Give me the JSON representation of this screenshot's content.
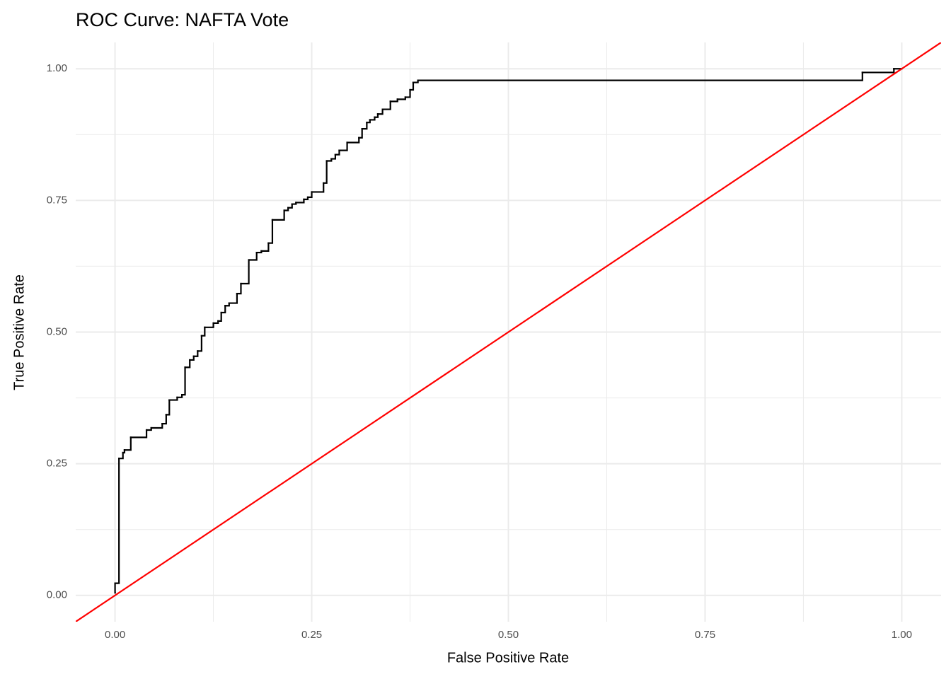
{
  "chart_data": {
    "type": "step",
    "title": "ROC Curve: NAFTA Vote",
    "x_label": "False Positive Rate",
    "y_label": "True Positive Rate",
    "xlim": [
      -0.05,
      1.05
    ],
    "ylim": [
      -0.05,
      1.05
    ],
    "xticks": [
      {
        "value": 0,
        "label": "0.00"
      },
      {
        "value": 0.25,
        "label": "0.25"
      },
      {
        "value": 0.5,
        "label": "0.50"
      },
      {
        "value": 0.75,
        "label": "0.75"
      },
      {
        "value": 1,
        "label": "1.00"
      }
    ],
    "yticks": [
      {
        "value": 0,
        "label": "0.00"
      },
      {
        "value": 0.25,
        "label": "0.25"
      },
      {
        "value": 0.5,
        "label": "0.50"
      },
      {
        "value": 0.75,
        "label": "0.75"
      },
      {
        "value": 1,
        "label": "1.00"
      }
    ],
    "grid": true,
    "minor_grid": true,
    "color": "#000000",
    "x": [
      0,
      0,
      0.005,
      0.01,
      0.012,
      0.02,
      0.04,
      0.046,
      0.06,
      0.065,
      0.069,
      0.079,
      0.085,
      0.089,
      0.095,
      0.1,
      0.105,
      0.11,
      0.114,
      0.125,
      0.131,
      0.135,
      0.14,
      0.145,
      0.155,
      0.16,
      0.17,
      0.18,
      0.186,
      0.195,
      0.2,
      0.215,
      0.22,
      0.225,
      0.23,
      0.24,
      0.245,
      0.25,
      0.265,
      0.269,
      0.275,
      0.28,
      0.285,
      0.295,
      0.31,
      0.314,
      0.32,
      0.324,
      0.33,
      0.334,
      0.34,
      0.35,
      0.359,
      0.369,
      0.375,
      0.379,
      0.385,
      0.95,
      0.99,
      1
    ],
    "values": [
      0.005,
      0.023,
      0.26,
      0.271,
      0.276,
      0.3,
      0.314,
      0.318,
      0.326,
      0.343,
      0.371,
      0.376,
      0.381,
      0.433,
      0.447,
      0.454,
      0.464,
      0.493,
      0.509,
      0.517,
      0.521,
      0.537,
      0.55,
      0.555,
      0.573,
      0.592,
      0.637,
      0.651,
      0.654,
      0.669,
      0.713,
      0.731,
      0.736,
      0.743,
      0.746,
      0.752,
      0.756,
      0.766,
      0.783,
      0.825,
      0.829,
      0.837,
      0.845,
      0.86,
      0.869,
      0.886,
      0.898,
      0.903,
      0.908,
      0.914,
      0.923,
      0.938,
      0.942,
      0.946,
      0.96,
      0.974,
      0.978,
      0.993,
      1,
      1
    ],
    "reference_line": {
      "slope": 1,
      "intercept": 0,
      "color": "#ff0000"
    }
  }
}
